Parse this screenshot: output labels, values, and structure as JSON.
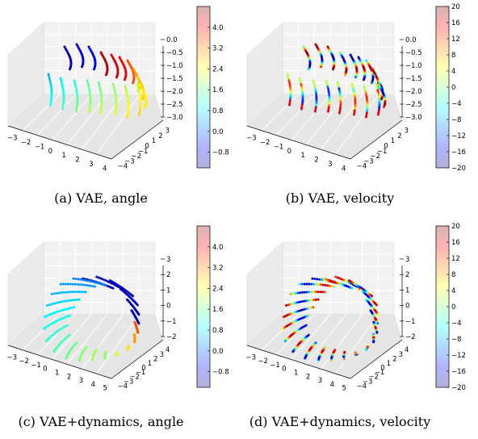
{
  "colors": {
    "jet": [
      "#00007f",
      "#0000ff",
      "#007fff",
      "#00ffff",
      "#7fff7f",
      "#ffff00",
      "#ff7f00",
      "#ff0000",
      "#7f0000"
    ],
    "pane": "#f2f2f2",
    "grid": "#ffffff"
  },
  "chart_data": [
    {
      "type": "scatter3d",
      "caption": "(a) VAE, angle",
      "colorbar": {
        "label_ticks": [
          "4.0",
          "3.2",
          "2.4",
          "1.6",
          "0.8",
          "0.0",
          "−0.8"
        ],
        "vmin": -1.4,
        "vmax": 4.8,
        "alpha": 0.3
      },
      "x_ticks": [
        "−3",
        "−2",
        "−1",
        "0",
        "1",
        "2",
        "3",
        "4"
      ],
      "y_ticks": [
        "−4",
        "−3",
        "−2",
        "−1",
        "0",
        "1",
        "2",
        "3"
      ],
      "z_ticks": [
        "0.0",
        "−0.5",
        "−1.0",
        "−1.5",
        "−2.0",
        "−2.5",
        "−3.0"
      ],
      "xlim": [
        -3,
        4
      ],
      "ylim": [
        -4,
        3
      ],
      "zlim": [
        -3.0,
        0.0
      ]
    },
    {
      "type": "scatter3d",
      "caption": "(b) VAE, velocity",
      "colorbar": {
        "label_ticks": [
          "20",
          "16",
          "12",
          "8",
          "4",
          "0",
          "−4",
          "−8",
          "−12",
          "−16",
          "−20"
        ],
        "vmin": -20,
        "vmax": 20,
        "alpha": 0.3
      },
      "x_ticks": [
        "−3",
        "−2",
        "−1",
        "0",
        "1",
        "2",
        "3",
        "4"
      ],
      "y_ticks": [
        "−4",
        "−3",
        "−2",
        "−1",
        "0",
        "1",
        "2",
        "3"
      ],
      "z_ticks": [
        "0.0",
        "−0.5",
        "−1.0",
        "−1.5",
        "−2.0",
        "−2.5",
        "−3.0"
      ],
      "xlim": [
        -3,
        4
      ],
      "ylim": [
        -4,
        3
      ],
      "zlim": [
        -3.0,
        0.0
      ]
    },
    {
      "type": "scatter3d",
      "caption": "(c) VAE+dynamics, angle",
      "colorbar": {
        "label_ticks": [
          "4.0",
          "3.2",
          "2.4",
          "1.6",
          "0.8",
          "0.0",
          "−0.8"
        ],
        "vmin": -1.4,
        "vmax": 4.8,
        "alpha": 0.3
      },
      "x_ticks": [
        "−3",
        "−2",
        "−1",
        "0",
        "1",
        "2",
        "3",
        "4",
        "5"
      ],
      "y_ticks": [
        "−4",
        "−3",
        "−2",
        "−1",
        "0",
        "1",
        "2",
        "3",
        "4"
      ],
      "z_ticks": [
        "3",
        "2",
        "1",
        "0",
        "−1",
        "−2"
      ],
      "xlim": [
        -3,
        5
      ],
      "ylim": [
        -4,
        4
      ],
      "zlim": [
        -2,
        3
      ]
    },
    {
      "type": "scatter3d",
      "caption": "(d) VAE+dynamics, velocity",
      "colorbar": {
        "label_ticks": [
          "20",
          "16",
          "12",
          "8",
          "4",
          "0",
          "−4",
          "−8",
          "−12",
          "−16",
          "−20"
        ],
        "vmin": -20,
        "vmax": 20,
        "alpha": 0.3
      },
      "x_ticks": [
        "−3",
        "−2",
        "−1",
        "0",
        "1",
        "2",
        "3",
        "4",
        "5"
      ],
      "y_ticks": [
        "−4",
        "−3",
        "−2",
        "−1",
        "0",
        "1",
        "2",
        "3",
        "4"
      ],
      "z_ticks": [
        "3",
        "2",
        "1",
        "0",
        "−1",
        "−2"
      ],
      "xlim": [
        -3,
        5
      ],
      "ylim": [
        -4,
        4
      ],
      "zlim": [
        -2,
        3
      ]
    }
  ]
}
